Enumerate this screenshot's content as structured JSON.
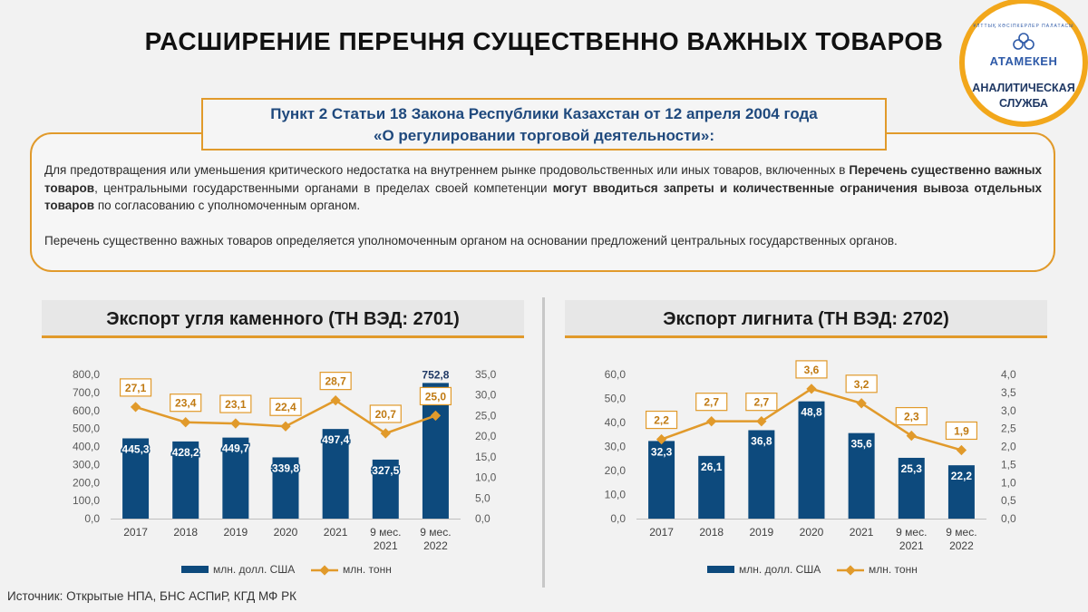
{
  "header": {
    "title": "РАСШИРЕНИЕ ПЕРЕЧНЯ СУЩЕСТВЕННО ВАЖНЫХ ТОВАРОВ"
  },
  "logo": {
    "top_text": "ҰЛТТЫҚ КӘСІПКЕРЛЕР ПАЛАТАСЫ",
    "name": "АТАМЕКЕН",
    "service_line1": "АНАЛИТИЧЕСКАЯ",
    "service_line2": "СЛУЖБА",
    "colors": {
      "ring": "#f2a71b",
      "brand": "#2e5aa8"
    }
  },
  "law": {
    "heading_line1": "Пункт 2 Статьи 18 Закона Республики Казахстан от 12 апреля 2004 года",
    "heading_line2": "«О регулировании торговой деятельности»:",
    "p1_a": "Для предотвращения или уменьшения критического недостатка на внутреннем рынке продовольственных или иных товаров, включенных в ",
    "p1_b": "Перечень существенно важных товаров",
    "p1_c": ", центральными государственными органами в пределах своей компетенции ",
    "p1_d": "могут вводиться запреты и количественные ограничения вывоза отдельных товаров",
    "p1_e": " по согласованию с уполномоченным органом.",
    "p2": "Перечень существенно важных товаров определяется уполномоченным органом на основании предложений центральных государственных органов."
  },
  "chart_data": [
    {
      "type": "bar+line",
      "title": "Экспорт угля каменного (ТН ВЭД: 2701)",
      "categories": [
        "2017",
        "2018",
        "2019",
        "2020",
        "2021",
        "9 мес. 2021",
        "9 мес. 2022"
      ],
      "category_labels": [
        [
          "2017"
        ],
        [
          "2018"
        ],
        [
          "2019"
        ],
        [
          "2020"
        ],
        [
          "2021"
        ],
        [
          "9 мес.",
          "2021"
        ],
        [
          "9 мес.",
          "2022"
        ]
      ],
      "series": [
        {
          "name": "млн. долл. США",
          "kind": "bar",
          "axis": "left",
          "values": [
            445.3,
            428.2,
            449.7,
            339.8,
            497.4,
            327.5,
            752.8
          ],
          "labels": [
            "445,3",
            "428,2",
            "449,7",
            "339,8",
            "497,4",
            "327,5",
            "752,8"
          ]
        },
        {
          "name": "млн. тонн",
          "kind": "line",
          "axis": "right",
          "values": [
            27.1,
            23.4,
            23.1,
            22.4,
            28.7,
            20.7,
            25.0
          ],
          "labels": [
            "27,1",
            "23,4",
            "23,1",
            "22,4",
            "28,7",
            "20,7",
            "25,0"
          ]
        }
      ],
      "y_left": {
        "min": 0,
        "max": 800,
        "ticks": [
          "0,0",
          "100,0",
          "200,0",
          "300,0",
          "400,0",
          "500,0",
          "600,0",
          "700,0",
          "800,0"
        ]
      },
      "y_right": {
        "min": 0,
        "max": 35,
        "ticks": [
          "0,0",
          "5,0",
          "10,0",
          "15,0",
          "20,0",
          "25,0",
          "30,0",
          "35,0"
        ]
      },
      "legend_position": "bottom",
      "grid": false,
      "colors": {
        "bar": "#0d4a7d",
        "line": "#e19a2b"
      }
    },
    {
      "type": "bar+line",
      "title": "Экспорт лигнита (ТН ВЭД: 2702)",
      "categories": [
        "2017",
        "2018",
        "2019",
        "2020",
        "2021",
        "9 мес. 2021",
        "9 мес. 2022"
      ],
      "category_labels": [
        [
          "2017"
        ],
        [
          "2018"
        ],
        [
          "2019"
        ],
        [
          "2020"
        ],
        [
          "2021"
        ],
        [
          "9 мес.",
          "2021"
        ],
        [
          "9 мес.",
          "2022"
        ]
      ],
      "series": [
        {
          "name": "млн. долл. США",
          "kind": "bar",
          "axis": "left",
          "values": [
            32.3,
            26.1,
            36.8,
            48.8,
            35.6,
            25.3,
            22.2
          ],
          "labels": [
            "32,3",
            "26,1",
            "36,8",
            "48,8",
            "35,6",
            "25,3",
            "22,2"
          ]
        },
        {
          "name": "млн. тонн",
          "kind": "line",
          "axis": "right",
          "values": [
            2.2,
            2.7,
            2.7,
            3.6,
            3.2,
            2.3,
            1.9
          ],
          "labels": [
            "2,2",
            "2,7",
            "2,7",
            "3,6",
            "3,2",
            "2,3",
            "1,9"
          ]
        }
      ],
      "y_left": {
        "min": 0,
        "max": 60,
        "ticks": [
          "0,0",
          "10,0",
          "20,0",
          "30,0",
          "40,0",
          "50,0",
          "60,0"
        ]
      },
      "y_right": {
        "min": 0,
        "max": 4,
        "ticks": [
          "0,0",
          "0,5",
          "1,0",
          "1,5",
          "2,0",
          "2,5",
          "3,0",
          "3,5",
          "4,0"
        ]
      },
      "legend_position": "bottom",
      "grid": false,
      "colors": {
        "bar": "#0d4a7d",
        "line": "#e19a2b"
      }
    }
  ],
  "footer": {
    "source": "Источник: Открытые НПА, БНС АСПиР, КГД МФ РК"
  }
}
